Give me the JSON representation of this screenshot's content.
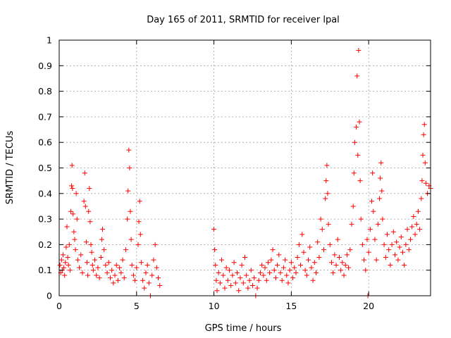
{
  "chart_data": {
    "type": "scatter",
    "title": "Day 165 of 2011, SRMTID for receiver lpal",
    "xlabel": "GPS time / hours",
    "ylabel": "SRMTID / TECUs",
    "xlim": [
      0,
      24
    ],
    "ylim": [
      0,
      1
    ],
    "xticks": [
      "0",
      "5",
      "10",
      "15",
      "20"
    ],
    "yticks": [
      "0",
      "0.1",
      "0.2",
      "0.3",
      "0.4",
      "0.5",
      "0.6",
      "0.7",
      "0.8",
      "0.9",
      "1"
    ],
    "grid": true,
    "marker": "+",
    "colors": {
      "series": "#ff0000",
      "axes": "#000000",
      "grid": "#a0a0a0"
    },
    "series": [
      {
        "name": "SRMTID",
        "points": [
          [
            0.05,
            0.12
          ],
          [
            0.1,
            0.09
          ],
          [
            0.15,
            0.14
          ],
          [
            0.2,
            0.1
          ],
          [
            0.25,
            0.16
          ],
          [
            0.3,
            0.11
          ],
          [
            0.35,
            0.08
          ],
          [
            0.4,
            0.13
          ],
          [
            0.45,
            0.19
          ],
          [
            0.5,
            0.27
          ],
          [
            0.55,
            0.15
          ],
          [
            0.6,
            0.12
          ],
          [
            0.65,
            0.2
          ],
          [
            0.7,
            0.1
          ],
          [
            0.75,
            0.33
          ],
          [
            0.8,
            0.43
          ],
          [
            0.83,
            0.51
          ],
          [
            0.86,
            0.42
          ],
          [
            0.9,
            0.32
          ],
          [
            0.95,
            0.25
          ],
          [
            1.0,
            0.22
          ],
          [
            1.05,
            0.18
          ],
          [
            1.1,
            0.4
          ],
          [
            1.15,
            0.3
          ],
          [
            1.2,
            0.14
          ],
          [
            1.3,
            0.11
          ],
          [
            1.4,
            0.16
          ],
          [
            1.5,
            0.09
          ],
          [
            1.6,
            0.37
          ],
          [
            1.65,
            0.48
          ],
          [
            1.7,
            0.35
          ],
          [
            1.75,
            0.21
          ],
          [
            1.8,
            0.13
          ],
          [
            1.85,
            0.08
          ],
          [
            1.9,
            0.33
          ],
          [
            1.95,
            0.42
          ],
          [
            2.0,
            0.29
          ],
          [
            2.05,
            0.2
          ],
          [
            2.1,
            0.17
          ],
          [
            2.15,
            0.12
          ],
          [
            2.2,
            0.1
          ],
          [
            2.3,
            0.14
          ],
          [
            2.4,
            0.08
          ],
          [
            2.5,
            0.11
          ],
          [
            2.6,
            0.07
          ],
          [
            2.7,
            0.15
          ],
          [
            2.75,
            0.22
          ],
          [
            2.8,
            0.26
          ],
          [
            2.9,
            0.18
          ],
          [
            3.0,
            0.12
          ],
          [
            3.1,
            0.09
          ],
          [
            3.2,
            0.13
          ],
          [
            3.3,
            0.07
          ],
          [
            3.4,
            0.1
          ],
          [
            3.5,
            0.05
          ],
          [
            3.6,
            0.08
          ],
          [
            3.7,
            0.12
          ],
          [
            3.8,
            0.06
          ],
          [
            3.9,
            0.11
          ],
          [
            4.0,
            0.09
          ],
          [
            4.1,
            0.14
          ],
          [
            4.2,
            0.07
          ],
          [
            4.3,
            0.18
          ],
          [
            4.4,
            0.3
          ],
          [
            4.45,
            0.41
          ],
          [
            4.5,
            0.57
          ],
          [
            4.55,
            0.5
          ],
          [
            4.6,
            0.33
          ],
          [
            4.65,
            0.22
          ],
          [
            4.7,
            0.12
          ],
          [
            4.8,
            0.08
          ],
          [
            4.9,
            0.06
          ],
          [
            5.0,
            0.11
          ],
          [
            5.1,
            0.2
          ],
          [
            5.15,
            0.29
          ],
          [
            5.2,
            0.37
          ],
          [
            5.25,
            0.24
          ],
          [
            5.3,
            0.13
          ],
          [
            5.4,
            0.06
          ],
          [
            5.5,
            0.03
          ],
          [
            5.6,
            0.09
          ],
          [
            5.7,
            0.12
          ],
          [
            5.8,
            0.05
          ],
          [
            5.9,
            0.0
          ],
          [
            6.0,
            0.08
          ],
          [
            6.1,
            0.14
          ],
          [
            6.2,
            0.2
          ],
          [
            6.3,
            0.11
          ],
          [
            6.4,
            0.07
          ],
          [
            6.5,
            0.04
          ],
          [
            10.0,
            0.26
          ],
          [
            10.05,
            0.18
          ],
          [
            10.1,
            0.12
          ],
          [
            10.15,
            0.06
          ],
          [
            10.2,
            0.02
          ],
          [
            10.3,
            0.09
          ],
          [
            10.4,
            0.05
          ],
          [
            10.5,
            0.14
          ],
          [
            10.6,
            0.08
          ],
          [
            10.7,
            0.03
          ],
          [
            10.8,
            0.11
          ],
          [
            10.9,
            0.06
          ],
          [
            11.0,
            0.1
          ],
          [
            11.1,
            0.04
          ],
          [
            11.2,
            0.08
          ],
          [
            11.3,
            0.13
          ],
          [
            11.4,
            0.05
          ],
          [
            11.5,
            0.09
          ],
          [
            11.6,
            0.02
          ],
          [
            11.7,
            0.07
          ],
          [
            11.8,
            0.12
          ],
          [
            11.9,
            0.05
          ],
          [
            12.0,
            0.15
          ],
          [
            12.1,
            0.08
          ],
          [
            12.2,
            0.03
          ],
          [
            12.3,
            0.06
          ],
          [
            12.4,
            0.1
          ],
          [
            12.5,
            0.04
          ],
          [
            12.6,
            0.07
          ],
          [
            12.7,
            0.0
          ],
          [
            12.8,
            0.03
          ],
          [
            12.9,
            0.06
          ],
          [
            13.0,
            0.09
          ],
          [
            13.1,
            0.12
          ],
          [
            13.2,
            0.08
          ],
          [
            13.3,
            0.11
          ],
          [
            13.4,
            0.06
          ],
          [
            13.5,
            0.13
          ],
          [
            13.6,
            0.09
          ],
          [
            13.7,
            0.14
          ],
          [
            13.8,
            0.18
          ],
          [
            13.9,
            0.1
          ],
          [
            14.0,
            0.07
          ],
          [
            14.1,
            0.12
          ],
          [
            14.2,
            0.16
          ],
          [
            14.3,
            0.09
          ],
          [
            14.4,
            0.06
          ],
          [
            14.5,
            0.11
          ],
          [
            14.6,
            0.14
          ],
          [
            14.7,
            0.08
          ],
          [
            14.8,
            0.05
          ],
          [
            14.9,
            0.1
          ],
          [
            15.0,
            0.13
          ],
          [
            15.1,
            0.07
          ],
          [
            15.2,
            0.11
          ],
          [
            15.3,
            0.09
          ],
          [
            15.4,
            0.15
          ],
          [
            15.5,
            0.2
          ],
          [
            15.6,
            0.12
          ],
          [
            15.7,
            0.24
          ],
          [
            15.8,
            0.17
          ],
          [
            15.9,
            0.1
          ],
          [
            16.0,
            0.08
          ],
          [
            16.1,
            0.14
          ],
          [
            16.2,
            0.19
          ],
          [
            16.3,
            0.11
          ],
          [
            16.4,
            0.06
          ],
          [
            16.5,
            0.13
          ],
          [
            16.6,
            0.09
          ],
          [
            16.7,
            0.21
          ],
          [
            16.8,
            0.15
          ],
          [
            16.9,
            0.3
          ],
          [
            17.0,
            0.26
          ],
          [
            17.1,
            0.18
          ],
          [
            17.2,
            0.38
          ],
          [
            17.25,
            0.45
          ],
          [
            17.3,
            0.51
          ],
          [
            17.35,
            0.4
          ],
          [
            17.4,
            0.28
          ],
          [
            17.5,
            0.2
          ],
          [
            17.6,
            0.13
          ],
          [
            17.7,
            0.09
          ],
          [
            17.8,
            0.16
          ],
          [
            17.9,
            0.12
          ],
          [
            18.0,
            0.22
          ],
          [
            18.1,
            0.15
          ],
          [
            18.2,
            0.1
          ],
          [
            18.3,
            0.13
          ],
          [
            18.4,
            0.08
          ],
          [
            18.5,
            0.12
          ],
          [
            18.6,
            0.16
          ],
          [
            18.7,
            0.11
          ],
          [
            18.8,
            0.18
          ],
          [
            18.9,
            0.28
          ],
          [
            19.0,
            0.35
          ],
          [
            19.05,
            0.48
          ],
          [
            19.1,
            0.6
          ],
          [
            19.2,
            0.66
          ],
          [
            19.25,
            0.86
          ],
          [
            19.3,
            0.55
          ],
          [
            19.35,
            0.96
          ],
          [
            19.4,
            0.68
          ],
          [
            19.45,
            0.45
          ],
          [
            19.5,
            0.3
          ],
          [
            19.6,
            0.2
          ],
          [
            19.7,
            0.14
          ],
          [
            19.8,
            0.1
          ],
          [
            19.9,
            0.22
          ],
          [
            19.95,
            0.0
          ],
          [
            20.0,
            0.17
          ],
          [
            20.1,
            0.26
          ],
          [
            20.2,
            0.37
          ],
          [
            20.25,
            0.48
          ],
          [
            20.3,
            0.33
          ],
          [
            20.4,
            0.22
          ],
          [
            20.5,
            0.14
          ],
          [
            20.6,
            0.28
          ],
          [
            20.7,
            0.38
          ],
          [
            20.75,
            0.46
          ],
          [
            20.8,
            0.52
          ],
          [
            20.85,
            0.41
          ],
          [
            20.9,
            0.3
          ],
          [
            21.0,
            0.2
          ],
          [
            21.1,
            0.15
          ],
          [
            21.2,
            0.24
          ],
          [
            21.3,
            0.18
          ],
          [
            21.4,
            0.12
          ],
          [
            21.5,
            0.2
          ],
          [
            21.6,
            0.25
          ],
          [
            21.7,
            0.16
          ],
          [
            21.8,
            0.21
          ],
          [
            21.9,
            0.14
          ],
          [
            22.0,
            0.19
          ],
          [
            22.1,
            0.23
          ],
          [
            22.2,
            0.17
          ],
          [
            22.3,
            0.12
          ],
          [
            22.4,
            0.2
          ],
          [
            22.5,
            0.26
          ],
          [
            22.6,
            0.18
          ],
          [
            22.7,
            0.22
          ],
          [
            22.8,
            0.27
          ],
          [
            22.9,
            0.31
          ],
          [
            23.0,
            0.24
          ],
          [
            23.1,
            0.28
          ],
          [
            23.2,
            0.33
          ],
          [
            23.3,
            0.26
          ],
          [
            23.4,
            0.38
          ],
          [
            23.45,
            0.45
          ],
          [
            23.5,
            0.55
          ],
          [
            23.55,
            0.63
          ],
          [
            23.6,
            0.67
          ],
          [
            23.65,
            0.52
          ],
          [
            23.7,
            0.44
          ],
          [
            23.8,
            0.4
          ],
          [
            23.9,
            0.43
          ],
          [
            24.0,
            0.42
          ]
        ]
      }
    ]
  }
}
